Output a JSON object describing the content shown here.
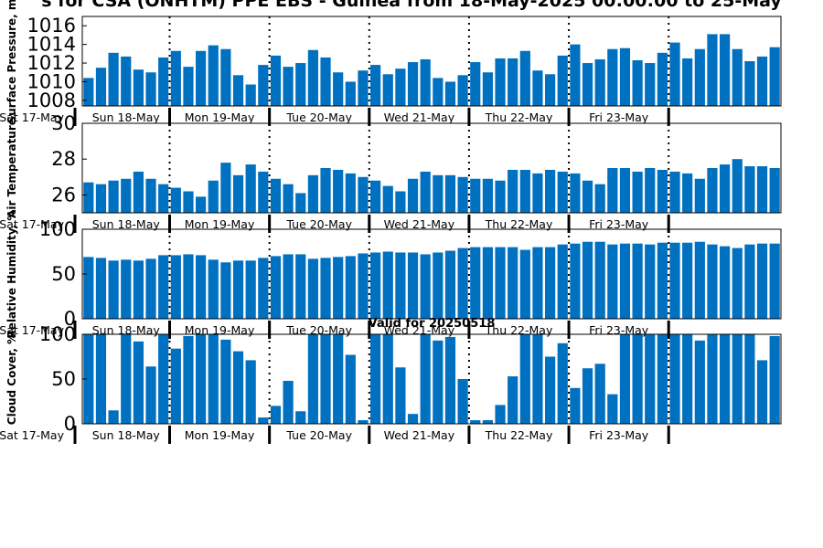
{
  "title": "s for CSA (ONHTM) PPE EBS  - Guinea from 18-May-2025 00:00:00 to 25-May",
  "valid_label": "Valid for 20250518",
  "bar_color": "#0070c0",
  "day_labels": [
    "Sat 17-May",
    "Sun 18-May",
    "Mon 19-May",
    "Tue 20-May",
    "Wed 21-May",
    "Thu 22-May",
    "Fri 23-May"
  ],
  "chart_data": [
    {
      "type": "bar",
      "ylabel": "Surface Pressure, m",
      "ylim": [
        1007.4,
        1017.0
      ],
      "yticks": [
        1008,
        1010,
        1012,
        1014,
        1016
      ],
      "values": [
        1010.4,
        1011.5,
        1013.1,
        1012.7,
        1011.3,
        1011.0,
        1012.6,
        1013.3,
        1011.6,
        1013.3,
        1013.9,
        1013.5,
        1010.7,
        1009.7,
        1011.8,
        1012.8,
        1011.6,
        1012.0,
        1013.4,
        1012.6,
        1011.0,
        1010.0,
        1011.2,
        1011.8,
        1010.8,
        1011.4,
        1012.1,
        1012.4,
        1010.4,
        1010.0,
        1010.7,
        1012.1,
        1011.0,
        1012.5,
        1012.5,
        1013.3,
        1011.2,
        1010.8,
        1012.8,
        1014.0,
        1012.0,
        1012.4,
        1013.5,
        1013.6,
        1012.3,
        1012.0,
        1013.1,
        1014.2,
        1012.5,
        1013.5,
        1015.1,
        1015.1,
        1013.5,
        1012.2,
        1012.7,
        1013.7
      ]
    },
    {
      "type": "bar",
      "ylabel": "Air Temperature",
      "ylim": [
        25,
        30
      ],
      "yticks": [
        26,
        28,
        30
      ],
      "values": [
        26.7,
        26.6,
        26.8,
        26.9,
        27.3,
        26.9,
        26.6,
        26.4,
        26.2,
        25.9,
        26.8,
        27.8,
        27.1,
        27.7,
        27.3,
        26.9,
        26.6,
        26.1,
        27.1,
        27.5,
        27.4,
        27.2,
        27.0,
        26.8,
        26.5,
        26.2,
        26.9,
        27.3,
        27.1,
        27.1,
        27.0,
        26.9,
        26.9,
        26.8,
        27.4,
        27.4,
        27.2,
        27.4,
        27.3,
        27.2,
        26.8,
        26.6,
        27.5,
        27.5,
        27.3,
        27.5,
        27.4,
        27.3,
        27.2,
        26.9,
        27.5,
        27.7,
        28.0,
        27.6,
        27.6,
        27.5
      ]
    },
    {
      "type": "bar",
      "ylabel": "Relative Humidity, %",
      "ylim": [
        0,
        100
      ],
      "yticks": [
        0,
        50,
        100
      ],
      "values": [
        69,
        68,
        65,
        66,
        65,
        67,
        71,
        71,
        72,
        71,
        66,
        63,
        65,
        65,
        68,
        70,
        72,
        72,
        67,
        68,
        69,
        70,
        73,
        74,
        75,
        74,
        74,
        72,
        74,
        76,
        79,
        80,
        80,
        80,
        80,
        77,
        80,
        80,
        83,
        84,
        86,
        86,
        83,
        84,
        84,
        83,
        85,
        85,
        85,
        86,
        83,
        81,
        79,
        83,
        84,
        84
      ]
    },
    {
      "type": "bar",
      "ylabel": "Cloud Cover, %",
      "ylim": [
        0,
        100
      ],
      "yticks": [
        0,
        50,
        100
      ],
      "values": [
        100,
        100,
        15,
        100,
        92,
        64,
        100,
        84,
        98,
        100,
        100,
        94,
        81,
        71,
        7,
        20,
        48,
        14,
        100,
        100,
        100,
        77,
        4,
        100,
        100,
        63,
        11,
        100,
        93,
        97,
        50,
        4,
        4,
        21,
        53,
        100,
        100,
        75,
        90,
        40,
        62,
        67,
        33,
        100,
        100,
        100,
        100,
        100,
        100,
        93,
        100,
        100,
        100,
        100,
        71,
        98
      ]
    }
  ]
}
